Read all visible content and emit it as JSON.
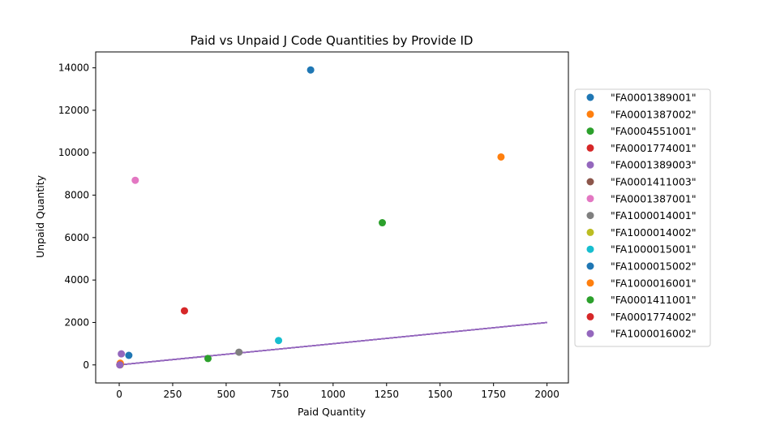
{
  "chart_data": {
    "type": "scatter",
    "title": "Paid vs Unpaid J Code Quantities by Provide ID",
    "xlabel": "Paid Quantity",
    "ylabel": "Unpaid Quantity",
    "xlim": [
      -110,
      2100
    ],
    "ylim": [
      -850,
      14750
    ],
    "xticks": [
      0,
      250,
      500,
      750,
      1000,
      1250,
      1500,
      1750,
      2000
    ],
    "yticks": [
      0,
      2000,
      4000,
      6000,
      8000,
      10000,
      12000,
      14000
    ],
    "grid": false,
    "legend_position": "right",
    "series": [
      {
        "name": "\"FA0001389001\"",
        "color": "#1f77b4",
        "points": [
          [
            895,
            13900
          ]
        ]
      },
      {
        "name": "\"FA0001387002\"",
        "color": "#ff7f0e",
        "points": [
          [
            1785,
            9800
          ]
        ]
      },
      {
        "name": "\"FA0004551001\"",
        "color": "#2ca02c",
        "points": [
          [
            1230,
            6700
          ]
        ]
      },
      {
        "name": "\"FA0001774001\"",
        "color": "#d62728",
        "points": [
          [
            305,
            2550
          ]
        ]
      },
      {
        "name": "\"FA0001389003\"",
        "color": "#9467bd",
        "points": [
          [
            10,
            520
          ]
        ]
      },
      {
        "name": "\"FA0001411003\"",
        "color": "#8c564b",
        "points": [
          [
            5,
            30
          ]
        ]
      },
      {
        "name": "\"FA0001387001\"",
        "color": "#e377c2",
        "points": [
          [
            75,
            8700
          ]
        ]
      },
      {
        "name": "\"FA1000014001\"",
        "color": "#7f7f7f",
        "points": [
          [
            560,
            600
          ]
        ]
      },
      {
        "name": "\"FA1000014002\"",
        "color": "#bcbd22",
        "points": [
          [
            5,
            10
          ]
        ]
      },
      {
        "name": "\"FA1000015001\"",
        "color": "#17becf",
        "points": [
          [
            745,
            1150
          ]
        ]
      },
      {
        "name": "\"FA1000015002\"",
        "color": "#1f77b4",
        "points": [
          [
            45,
            450
          ]
        ]
      },
      {
        "name": "\"FA1000016001\"",
        "color": "#ff7f0e",
        "points": [
          [
            5,
            80
          ]
        ]
      },
      {
        "name": "\"FA0001411001\"",
        "color": "#2ca02c",
        "points": [
          [
            415,
            300
          ]
        ]
      },
      {
        "name": "\"FA0001774002\"",
        "color": "#d62728",
        "points": [
          [
            3,
            5
          ]
        ]
      },
      {
        "name": "\"FA1000016002\"",
        "color": "#9467bd",
        "points": [
          [
            3,
            0
          ]
        ]
      }
    ],
    "reference_line": {
      "x": [
        0,
        2000
      ],
      "y": [
        0,
        2000
      ],
      "color": "#9467bd"
    }
  }
}
